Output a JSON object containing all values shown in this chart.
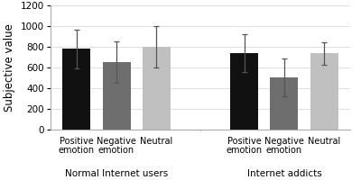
{
  "groups": [
    "Normal Internet users",
    "Internet addicts"
  ],
  "conditions": [
    "Positive\nemotion",
    "Negative\nemotion",
    "Neutral"
  ],
  "values": [
    [
      780,
      655,
      800
    ],
    [
      740,
      505,
      735
    ]
  ],
  "errors": [
    [
      185,
      200,
      200
    ],
    [
      185,
      180,
      110
    ]
  ],
  "bar_colors": [
    "#111111",
    "#6e6e6e",
    "#c0c0c0"
  ],
  "ylabel": "Subjective value",
  "ylim": [
    0,
    1200
  ],
  "yticks": [
    0,
    200,
    400,
    600,
    800,
    1000,
    1200
  ],
  "bg_color": "#ffffff",
  "bar_width": 0.7,
  "grid_color": "#e0e0e0",
  "group_label_fontsize": 7.5,
  "cond_label_fontsize": 7.0,
  "ylabel_fontsize": 8.5,
  "tick_fontsize": 7.5,
  "group_offsets": [
    0,
    4.2
  ],
  "xlim": [
    -0.65,
    6.85
  ]
}
